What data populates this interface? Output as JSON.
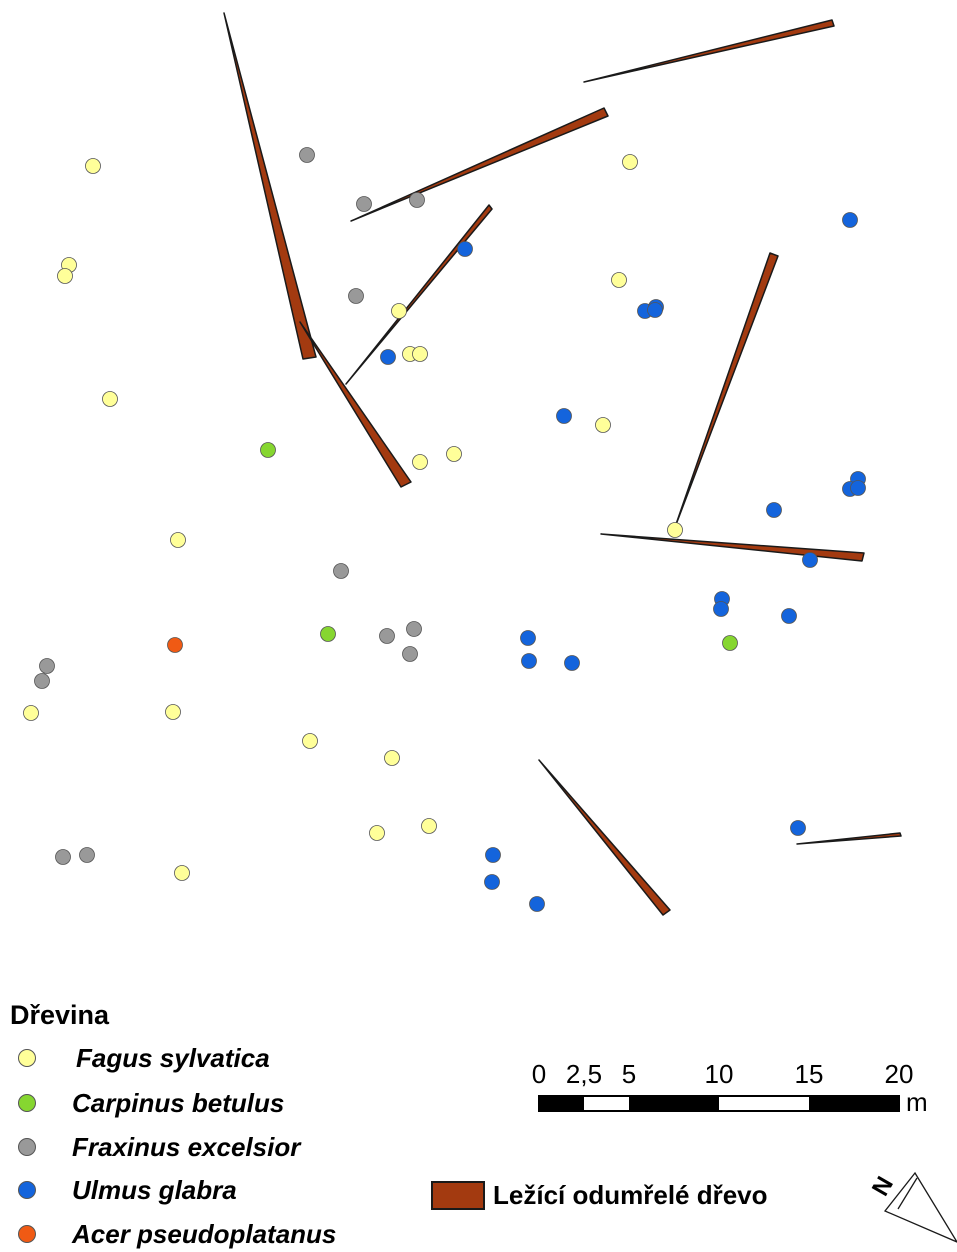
{
  "colors": {
    "deadwood_fill": "#a33a10",
    "deadwood_stroke": "#1a1a1a",
    "point_stroke": "#555555"
  },
  "legend": {
    "title": "Dřevina",
    "species": [
      {
        "key": "fagus",
        "label": "Fagus sylvatica",
        "color": "#ffff99"
      },
      {
        "key": "carpinus",
        "label": "Carpinus betulus",
        "color": "#86d630"
      },
      {
        "key": "fraxinus",
        "label": "Fraxinus excelsior",
        "color": "#999999"
      },
      {
        "key": "ulmus",
        "label": "Ulmus glabra",
        "color": "#1464dc"
      },
      {
        "key": "acer",
        "label": "Acer pseudoplatanus",
        "color": "#f05a14"
      }
    ],
    "deadwood_label": "Ležící odumřelé dřevo"
  },
  "scale_bar": {
    "ticks": [
      "0",
      "2,5",
      "5",
      "10",
      "15",
      "20"
    ],
    "tick_values": [
      0,
      2.5,
      5,
      10,
      15,
      20
    ],
    "unit": "m"
  },
  "north_arrow": {
    "label": "N",
    "icon": "north-arrow-icon"
  }
}
